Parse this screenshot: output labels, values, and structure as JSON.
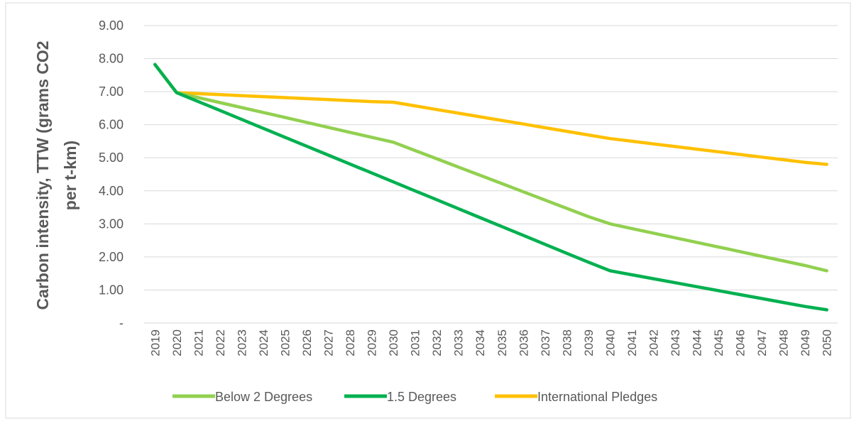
{
  "chart_data": {
    "type": "line",
    "title": "",
    "xlabel": "",
    "ylabel_lines": [
      "Carbon intensity, TTW (grams CO2",
      "per t-km)"
    ],
    "x": [
      2019,
      2020,
      2021,
      2022,
      2023,
      2024,
      2025,
      2026,
      2027,
      2028,
      2029,
      2030,
      2031,
      2032,
      2033,
      2034,
      2035,
      2036,
      2037,
      2038,
      2039,
      2040,
      2041,
      2042,
      2043,
      2044,
      2045,
      2046,
      2047,
      2048,
      2049,
      2050
    ],
    "ylim": [
      0,
      9
    ],
    "y_ticks": [
      {
        "value": 0,
        "label": "-"
      },
      {
        "value": 1,
        "label": "1.00"
      },
      {
        "value": 2,
        "label": "2.00"
      },
      {
        "value": 3,
        "label": "3.00"
      },
      {
        "value": 4,
        "label": "4.00"
      },
      {
        "value": 5,
        "label": "5.00"
      },
      {
        "value": 6,
        "label": "6.00"
      },
      {
        "value": 7,
        "label": "7.00"
      },
      {
        "value": 8,
        "label": "8.00"
      },
      {
        "value": 9,
        "label": "9.00"
      }
    ],
    "grid": true,
    "legend_position": "bottom",
    "series": [
      {
        "name": "Below 2 Degrees",
        "color": "#92d050",
        "values": [
          7.82,
          6.97,
          6.82,
          6.67,
          6.52,
          6.37,
          6.22,
          6.07,
          5.92,
          5.77,
          5.62,
          5.47,
          5.22,
          4.97,
          4.72,
          4.47,
          4.22,
          3.97,
          3.72,
          3.47,
          3.22,
          3.0,
          2.86,
          2.72,
          2.58,
          2.44,
          2.3,
          2.16,
          2.02,
          1.88,
          1.74,
          1.58
        ]
      },
      {
        "name": "1.5 Degrees",
        "color": "#00b050",
        "values": [
          7.82,
          6.97,
          6.7,
          6.43,
          6.16,
          5.89,
          5.62,
          5.35,
          5.08,
          4.81,
          4.54,
          4.27,
          4.0,
          3.73,
          3.46,
          3.19,
          2.92,
          2.65,
          2.38,
          2.11,
          1.84,
          1.58,
          1.46,
          1.34,
          1.22,
          1.1,
          0.98,
          0.86,
          0.74,
          0.62,
          0.5,
          0.4
        ]
      },
      {
        "name": "International Pledges",
        "color": "#ffc000",
        "values": [
          7.82,
          6.97,
          6.94,
          6.91,
          6.88,
          6.85,
          6.82,
          6.79,
          6.76,
          6.73,
          6.7,
          6.68,
          6.57,
          6.46,
          6.35,
          6.24,
          6.13,
          6.02,
          5.91,
          5.8,
          5.69,
          5.58,
          5.5,
          5.42,
          5.34,
          5.26,
          5.18,
          5.1,
          5.02,
          4.94,
          4.86,
          4.8
        ]
      }
    ]
  }
}
